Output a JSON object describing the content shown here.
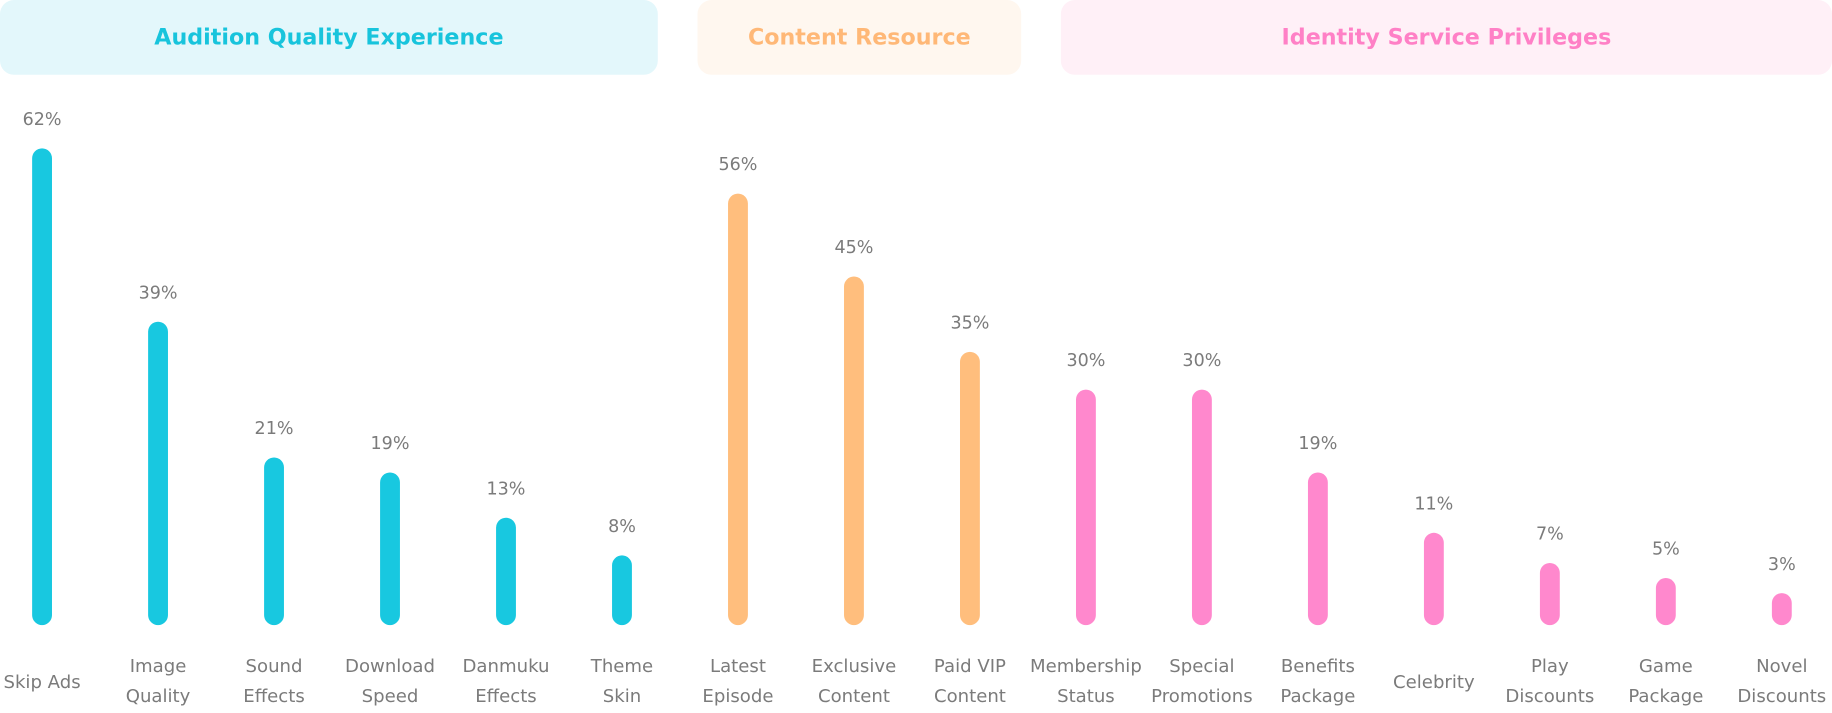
{
  "chart_data": {
    "type": "bar",
    "groups": [
      {
        "label": "Audition Quality Experience",
        "color": "#18c8e0",
        "items": [
          {
            "label": [
              "Skip Ads"
            ],
            "value": 62,
            "value_label": "62%"
          },
          {
            "label": [
              "Image",
              "Quality"
            ],
            "value": 39,
            "value_label": "39%"
          },
          {
            "label": [
              "Sound",
              "Effects"
            ],
            "value": 21,
            "value_label": "21%"
          },
          {
            "label": [
              "Download",
              "Speed"
            ],
            "value": 19,
            "value_label": "19%"
          },
          {
            "label": [
              "Danmuku",
              "Effects"
            ],
            "value": 13,
            "value_label": "13%"
          },
          {
            "label": [
              "Theme",
              "Skin"
            ],
            "value": 8,
            "value_label": "8%"
          }
        ]
      },
      {
        "label": "Content Resource",
        "color": "#ffbe7d",
        "items": [
          {
            "label": [
              "Latest",
              "Episode"
            ],
            "value": 56,
            "value_label": "56%"
          },
          {
            "label": [
              "Exclusive",
              "Content"
            ],
            "value": 45,
            "value_label": "45%"
          },
          {
            "label": [
              "Paid VIP",
              "Content"
            ],
            "value": 35,
            "value_label": "35%"
          }
        ]
      },
      {
        "label": "Identity Service Privileges",
        "color": "#ff88cd",
        "items": [
          {
            "label": [
              "Membership",
              "Status"
            ],
            "value": 30,
            "value_label": "30%"
          },
          {
            "label": [
              "Special",
              "Promotions"
            ],
            "value": 30,
            "value_label": "30%"
          },
          {
            "label": [
              "Benefits",
              "Package"
            ],
            "value": 19,
            "value_label": "19%"
          },
          {
            "label": [
              "Celebrity"
            ],
            "value": 11,
            "value_label": "11%"
          },
          {
            "label": [
              "Play",
              "Discounts"
            ],
            "value": 7,
            "value_label": "7%"
          },
          {
            "label": [
              "Game",
              "Package"
            ],
            "value": 5,
            "value_label": "5%"
          },
          {
            "label": [
              "Novel",
              "Discounts"
            ],
            "value": 3,
            "value_label": "3%"
          }
        ]
      }
    ]
  }
}
